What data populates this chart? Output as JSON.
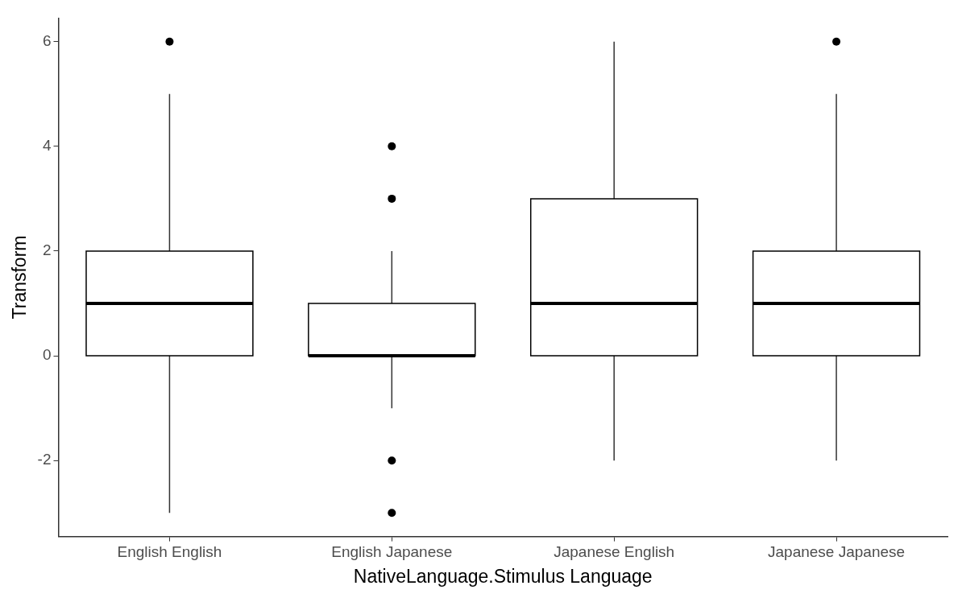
{
  "chart_data": {
    "type": "box",
    "xlabel": "NativeLanguage.Stimulus Language",
    "ylabel": "Transform",
    "categories": [
      "English English",
      "English Japanese",
      "Japanese English",
      "Japanese Japanese"
    ],
    "boxes": [
      {
        "low": -3,
        "q1": 0,
        "median": 1,
        "q3": 2,
        "high": 5,
        "outliers": [
          6
        ]
      },
      {
        "low": -1,
        "q1": 0,
        "median": 0,
        "q3": 1,
        "high": 2,
        "outliers": [
          4,
          3,
          -2,
          -3
        ]
      },
      {
        "low": -2,
        "q1": 0,
        "median": 1,
        "q3": 3,
        "high": 6
      },
      {
        "low": -2,
        "q1": 0,
        "median": 1,
        "q3": 2,
        "high": 5,
        "outliers": [
          6
        ]
      }
    ],
    "ylim": [
      -3.45,
      6.45
    ],
    "yticks": [
      -2,
      0,
      2,
      4,
      6
    ],
    "grid": false,
    "legend": false
  }
}
